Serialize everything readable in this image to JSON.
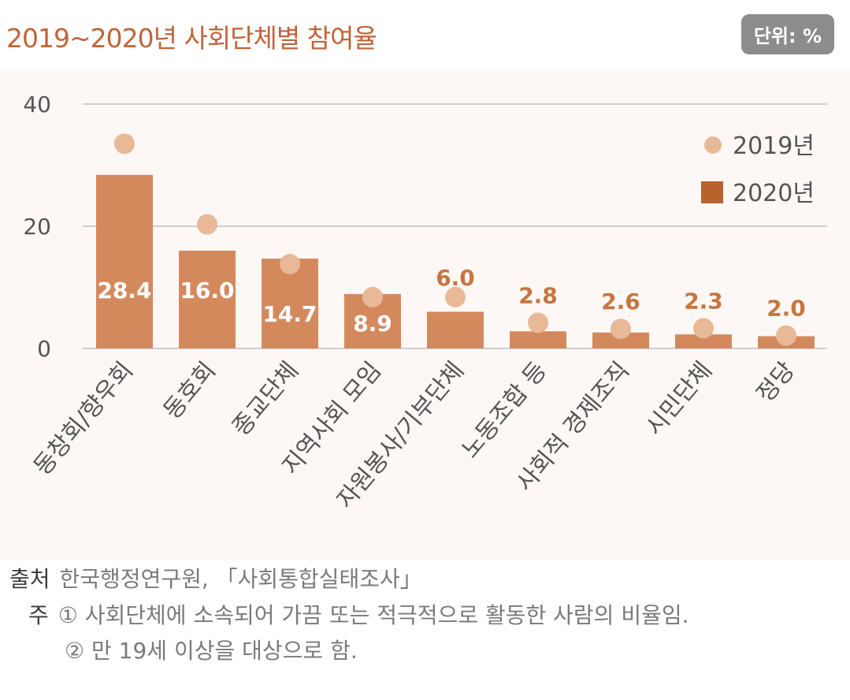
{
  "title": "2019~2020년 사회단체별 참여율",
  "unit_badge": "단위: %",
  "colors": {
    "bar_2020": "#d4895d",
    "legend_2020": "#b8622e",
    "marker_2019": "#e8b996",
    "data_label": "#c8753f",
    "title": "#c0643a",
    "grid": "#cfcfcf",
    "axis_text": "#555555"
  },
  "chart_data": {
    "type": "bar",
    "categories": [
      "동창회/향우회",
      "동호회",
      "종교단체",
      "지역사회 모임",
      "자원봉사/기부단체",
      "노동조합 등",
      "사회적 경제조직",
      "시민단체",
      "정당"
    ],
    "series": [
      {
        "name": "2019년",
        "kind": "marker",
        "values": [
          33.5,
          20.3,
          13.8,
          8.4,
          8.4,
          4.2,
          3.2,
          3.3,
          2.1
        ]
      },
      {
        "name": "2020년",
        "kind": "bar",
        "values": [
          28.4,
          16.0,
          14.7,
          8.9,
          6.0,
          2.8,
          2.6,
          2.3,
          2.0
        ]
      }
    ],
    "value_labels": [
      "28.4",
      "16.0",
      "14.7",
      "8.9",
      "6.0",
      "2.8",
      "2.6",
      "2.3",
      "2.0"
    ],
    "label_inside_bar": [
      true,
      true,
      true,
      true,
      false,
      false,
      false,
      false,
      false
    ],
    "yticks": [
      "0",
      "20",
      "40"
    ],
    "ylim": [
      0,
      40
    ],
    "grid": true,
    "legend_position": "top-right"
  },
  "footer": {
    "source_label": "출처",
    "source_text": "한국행정연구원, 「사회통합실태조사」",
    "note_label": "주",
    "notes": [
      "① 사회단체에 소속되어 가끔 또는 적극적으로 활동한 사람의 비율임.",
      "② 만 19세 이상을 대상으로 함."
    ]
  }
}
